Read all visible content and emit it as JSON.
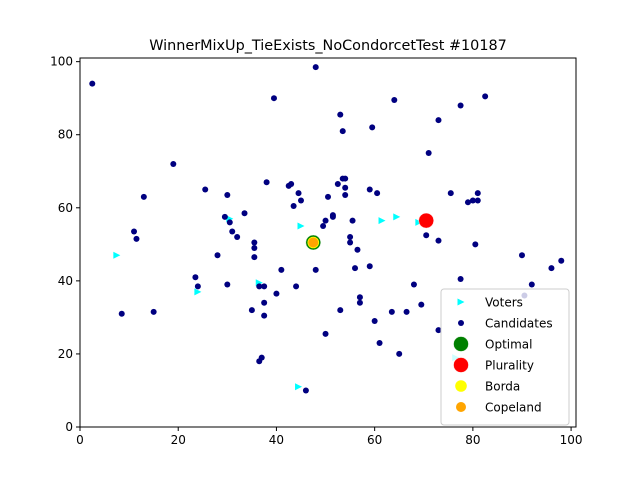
{
  "chart_data": {
    "type": "scatter",
    "title": "WinnerMixUp_TieExists_NoCondorcetTest #10187",
    "xlabel": "",
    "ylabel": "",
    "xlim": [
      0,
      101
    ],
    "ylim": [
      0,
      101
    ],
    "x_ticks": [
      "0",
      "20",
      "40",
      "60",
      "80",
      "100"
    ],
    "y_ticks": [
      "0",
      "20",
      "40",
      "60",
      "80",
      "100"
    ],
    "grid": false,
    "legend_position": "lower-right",
    "series": [
      {
        "name": "Voters",
        "marker": "triangle-right",
        "color": "#00ffff",
        "points": [
          [
            7.5,
            47
          ],
          [
            24,
            37
          ],
          [
            30.5,
            57
          ],
          [
            36.5,
            39.5
          ],
          [
            44.5,
            11
          ],
          [
            45,
            55
          ],
          [
            61.5,
            56.5
          ],
          [
            64.5,
            57.5
          ],
          [
            69,
            56
          ],
          [
            76.5,
            19
          ]
        ]
      },
      {
        "name": "Candidates",
        "marker": "circle",
        "color": "#000080",
        "points": [
          [
            2.5,
            94
          ],
          [
            8.5,
            31
          ],
          [
            11,
            53.5
          ],
          [
            11.5,
            51.5
          ],
          [
            13,
            63
          ],
          [
            15,
            31.5
          ],
          [
            19,
            72
          ],
          [
            23.5,
            41
          ],
          [
            24,
            38.5
          ],
          [
            25.5,
            65
          ],
          [
            28,
            47
          ],
          [
            29.5,
            57.5
          ],
          [
            30,
            63.5
          ],
          [
            30,
            39
          ],
          [
            30.5,
            56
          ],
          [
            31,
            53.5
          ],
          [
            32,
            52
          ],
          [
            33.5,
            58.5
          ],
          [
            35,
            32
          ],
          [
            35.5,
            46.5
          ],
          [
            35.5,
            49
          ],
          [
            35.5,
            50.5
          ],
          [
            36.5,
            38.5
          ],
          [
            36.5,
            18
          ],
          [
            37,
            19
          ],
          [
            37.5,
            38.5
          ],
          [
            37.5,
            34
          ],
          [
            37.5,
            30.5
          ],
          [
            38,
            67
          ],
          [
            39.5,
            90
          ],
          [
            40,
            36.5
          ],
          [
            41,
            43
          ],
          [
            42.5,
            66
          ],
          [
            43,
            66.5
          ],
          [
            43.5,
            60.5
          ],
          [
            44,
            38.5
          ],
          [
            44.5,
            64
          ],
          [
            45,
            62
          ],
          [
            46,
            10
          ],
          [
            48,
            98.5
          ],
          [
            48,
            43
          ],
          [
            49.5,
            55
          ],
          [
            50,
            56.5
          ],
          [
            50,
            25.5
          ],
          [
            50.5,
            63
          ],
          [
            51.5,
            57.5
          ],
          [
            51.5,
            58
          ],
          [
            52.5,
            66.5
          ],
          [
            53,
            85.5
          ],
          [
            53,
            32
          ],
          [
            53.5,
            68
          ],
          [
            53.5,
            81
          ],
          [
            54,
            68
          ],
          [
            54,
            65.5
          ],
          [
            54,
            63.5
          ],
          [
            55,
            50.5
          ],
          [
            55,
            52
          ],
          [
            55.5,
            56.5
          ],
          [
            56,
            43.5
          ],
          [
            56.5,
            48.5
          ],
          [
            57,
            35.5
          ],
          [
            57,
            34
          ],
          [
            59,
            65
          ],
          [
            59,
            44
          ],
          [
            59.5,
            82
          ],
          [
            60,
            29
          ],
          [
            60.5,
            64
          ],
          [
            61,
            23
          ],
          [
            63.5,
            31.5
          ],
          [
            64,
            89.5
          ],
          [
            65,
            20
          ],
          [
            66.5,
            31.5
          ],
          [
            68,
            39
          ],
          [
            69.5,
            33.5
          ],
          [
            70.5,
            52.5
          ],
          [
            71,
            75
          ],
          [
            73,
            84
          ],
          [
            73,
            51
          ],
          [
            73,
            26.5
          ],
          [
            75.5,
            64
          ],
          [
            77.5,
            88
          ],
          [
            77.5,
            40.5
          ],
          [
            79,
            61.5
          ],
          [
            80,
            62
          ],
          [
            80.5,
            50
          ],
          [
            81,
            64
          ],
          [
            81,
            62
          ],
          [
            82.5,
            90.5
          ],
          [
            90,
            47
          ],
          [
            90.5,
            36
          ],
          [
            92,
            39
          ],
          [
            96,
            43.5
          ],
          [
            98,
            45.5
          ]
        ]
      },
      {
        "name": "Optimal",
        "marker": "circle-large",
        "color": "#008000",
        "points": [
          [
            47.5,
            50.5
          ]
        ]
      },
      {
        "name": "Plurality",
        "marker": "circle-large",
        "color": "#ff0000",
        "points": [
          [
            70.5,
            56.5
          ]
        ]
      },
      {
        "name": "Borda",
        "marker": "circle-medium",
        "color": "#ffff00",
        "points": [
          [
            47.5,
            50.5
          ]
        ]
      },
      {
        "name": "Copeland",
        "marker": "circle-small",
        "color": "#ffa500",
        "points": [
          [
            47.5,
            50.5
          ]
        ]
      }
    ]
  }
}
